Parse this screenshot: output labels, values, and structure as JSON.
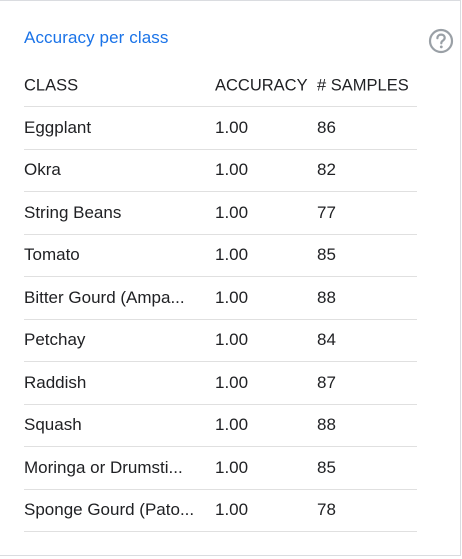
{
  "panel": {
    "title": "Accuracy per class"
  },
  "icons": {
    "help": "help-circle-icon"
  },
  "colors": {
    "title": "#1a73e8",
    "divider": "#e0e0e0",
    "help_icon": "#9aa0a6"
  },
  "table": {
    "headers": [
      "CLASS",
      "ACCURACY",
      "# SAMPLES"
    ],
    "rows": [
      {
        "class": "Eggplant",
        "accuracy": "1.00",
        "samples": "86"
      },
      {
        "class": "Okra",
        "accuracy": "1.00",
        "samples": "82"
      },
      {
        "class": "String Beans",
        "accuracy": "1.00",
        "samples": "77"
      },
      {
        "class": "Tomato",
        "accuracy": "1.00",
        "samples": "85"
      },
      {
        "class": "Bitter Gourd (Ampa...",
        "accuracy": "1.00",
        "samples": "88"
      },
      {
        "class": "Petchay",
        "accuracy": "1.00",
        "samples": "84"
      },
      {
        "class": "Raddish",
        "accuracy": "1.00",
        "samples": "87"
      },
      {
        "class": "Squash",
        "accuracy": "1.00",
        "samples": "88"
      },
      {
        "class": "Moringa or Drumsti...",
        "accuracy": "1.00",
        "samples": "85"
      },
      {
        "class": "Sponge Gourd (Pato...",
        "accuracy": "1.00",
        "samples": "78"
      }
    ]
  }
}
